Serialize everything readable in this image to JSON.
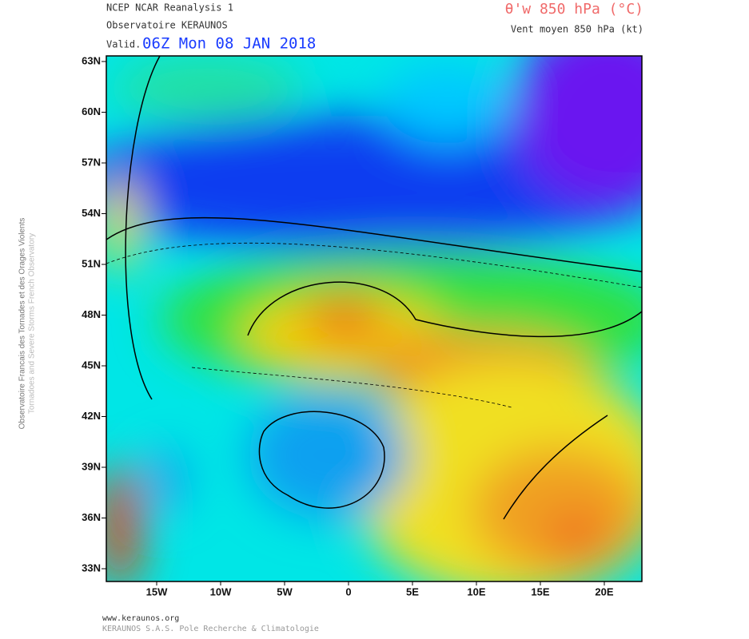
{
  "header": {
    "source": "NCEP NCAR Reanalysis 1",
    "observatory": "Observatoire KERAUNOS",
    "valid_prefix": "Valid.",
    "valid_time": "06Z Mon 08 JAN 2018",
    "parameter": "θ'w 850 hPa (°C)",
    "wind": "Vent moyen 850 hPa (kt)"
  },
  "side_label": {
    "line1": "Observatoire Francais des Tornades et des Orages Violents",
    "line2": "Tornadoes and Severe Storms French Observatory"
  },
  "axes": {
    "lat_labels": [
      "63N",
      "60N",
      "57N",
      "54N",
      "51N",
      "48N",
      "45N",
      "42N",
      "39N",
      "36N",
      "33N"
    ],
    "lon_labels": [
      "15W",
      "10W",
      "5W",
      "0",
      "5E",
      "10E",
      "15E",
      "20E"
    ]
  },
  "footer": {
    "url": "www.keraunos.org",
    "company": "KERAUNOS S.A.S. Pole Recherche & Climatologie"
  }
}
